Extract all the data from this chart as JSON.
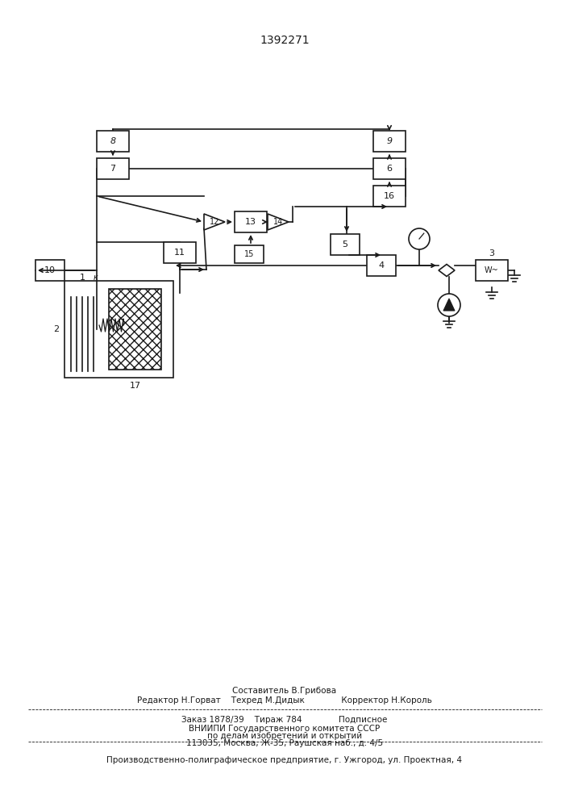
{
  "title": "1392271",
  "bg_color": "#ffffff",
  "line_color": "#1a1a1a",
  "footer": {
    "line1": "Составитель В.Грибова",
    "line2": "Редактор Н.Горват    Техред М.Дидык              Корректор Н.Король",
    "line3": "Заказ 1878/39    Тираж 784              Подписное",
    "line4": "ВНИИПИ Государственного комитета СССР",
    "line5": "по делам изобретений и открытий",
    "line6": "113035, Москва, Ж-35, Раушская наб., д. 4/5",
    "line7": "Производственно-полиграфическое предприятие, г. Ужгород, ул. Проектная, 4"
  }
}
